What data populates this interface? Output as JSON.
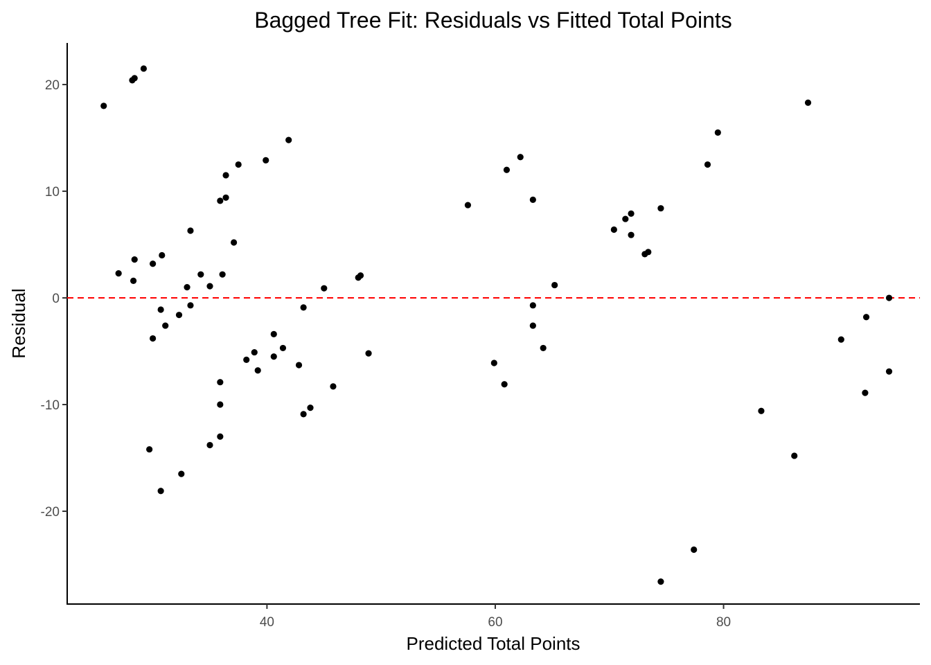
{
  "chart_data": {
    "type": "scatter",
    "title": "Bagged Tree Fit: Residuals vs Fitted Total Points",
    "xlabel": "Predicted Total Points",
    "ylabel": "Residual",
    "xlim": [
      22.5,
      97.2
    ],
    "ylim": [
      -28.7,
      23.9
    ],
    "x_ticks": [
      40,
      60,
      80
    ],
    "x_tick_labels": [
      "40",
      "60",
      "80"
    ],
    "y_ticks": [
      -20,
      -10,
      0,
      10,
      20
    ],
    "y_tick_labels": [
      "-20",
      "-10",
      "0",
      "10",
      "20"
    ],
    "grid": false,
    "reference_line": {
      "y": 0,
      "style": "dashed",
      "color": "#ff0000"
    },
    "point_color": "#000000",
    "points": [
      {
        "x": 25.7,
        "y": 18.0
      },
      {
        "x": 27.0,
        "y": 2.3
      },
      {
        "x": 28.2,
        "y": 20.4
      },
      {
        "x": 28.4,
        "y": 20.6
      },
      {
        "x": 28.4,
        "y": 3.6
      },
      {
        "x": 28.3,
        "y": 1.6
      },
      {
        "x": 29.2,
        "y": 21.5
      },
      {
        "x": 29.7,
        "y": -14.2
      },
      {
        "x": 30.0,
        "y": 3.2
      },
      {
        "x": 30.0,
        "y": -3.8
      },
      {
        "x": 30.7,
        "y": -1.1
      },
      {
        "x": 30.8,
        "y": 4.0
      },
      {
        "x": 30.7,
        "y": -18.1
      },
      {
        "x": 31.1,
        "y": -2.6
      },
      {
        "x": 32.3,
        "y": -1.6
      },
      {
        "x": 32.5,
        "y": -16.5
      },
      {
        "x": 33.0,
        "y": 1.0
      },
      {
        "x": 33.3,
        "y": 6.3
      },
      {
        "x": 33.3,
        "y": -0.7
      },
      {
        "x": 34.2,
        "y": 2.2
      },
      {
        "x": 35.0,
        "y": 1.1
      },
      {
        "x": 35.0,
        "y": -13.8
      },
      {
        "x": 35.9,
        "y": 9.1
      },
      {
        "x": 35.9,
        "y": -7.9
      },
      {
        "x": 35.9,
        "y": -10.0
      },
      {
        "x": 35.9,
        "y": -13.0
      },
      {
        "x": 36.1,
        "y": 2.2
      },
      {
        "x": 36.4,
        "y": 11.5
      },
      {
        "x": 36.4,
        "y": 9.4
      },
      {
        "x": 37.1,
        "y": 5.2
      },
      {
        "x": 37.5,
        "y": 12.5
      },
      {
        "x": 38.2,
        "y": -5.8
      },
      {
        "x": 38.9,
        "y": -5.1
      },
      {
        "x": 39.2,
        "y": -6.8
      },
      {
        "x": 39.9,
        "y": 12.9
      },
      {
        "x": 40.6,
        "y": -3.4
      },
      {
        "x": 40.6,
        "y": -5.5
      },
      {
        "x": 41.4,
        "y": -4.7
      },
      {
        "x": 41.9,
        "y": 14.8
      },
      {
        "x": 42.8,
        "y": -6.3
      },
      {
        "x": 43.2,
        "y": -0.9
      },
      {
        "x": 43.2,
        "y": -10.9
      },
      {
        "x": 43.8,
        "y": -10.3
      },
      {
        "x": 45.0,
        "y": 0.9
      },
      {
        "x": 45.8,
        "y": -8.3
      },
      {
        "x": 48.0,
        "y": 1.9
      },
      {
        "x": 48.2,
        "y": 2.1
      },
      {
        "x": 48.9,
        "y": -5.2
      },
      {
        "x": 57.6,
        "y": 8.7
      },
      {
        "x": 59.9,
        "y": -6.1
      },
      {
        "x": 60.8,
        "y": -8.1
      },
      {
        "x": 61.0,
        "y": 12.0
      },
      {
        "x": 62.2,
        "y": 13.2
      },
      {
        "x": 63.3,
        "y": 9.2
      },
      {
        "x": 63.3,
        "y": -0.7
      },
      {
        "x": 63.3,
        "y": -2.6
      },
      {
        "x": 64.2,
        "y": -4.7
      },
      {
        "x": 65.2,
        "y": 1.2
      },
      {
        "x": 70.4,
        "y": 6.4
      },
      {
        "x": 71.4,
        "y": 7.4
      },
      {
        "x": 71.9,
        "y": 7.9
      },
      {
        "x": 71.9,
        "y": 5.9
      },
      {
        "x": 73.1,
        "y": 4.1
      },
      {
        "x": 73.4,
        "y": 4.3
      },
      {
        "x": 74.5,
        "y": 8.4
      },
      {
        "x": 74.5,
        "y": -26.6
      },
      {
        "x": 77.4,
        "y": -23.6
      },
      {
        "x": 78.6,
        "y": 12.5
      },
      {
        "x": 79.5,
        "y": 15.5
      },
      {
        "x": 83.3,
        "y": -10.6
      },
      {
        "x": 86.2,
        "y": -14.8
      },
      {
        "x": 87.4,
        "y": 18.3
      },
      {
        "x": 90.3,
        "y": -3.9
      },
      {
        "x": 92.4,
        "y": -8.9
      },
      {
        "x": 92.5,
        "y": -1.8
      },
      {
        "x": 94.5,
        "y": 0.0
      },
      {
        "x": 94.5,
        "y": -6.9
      }
    ]
  }
}
